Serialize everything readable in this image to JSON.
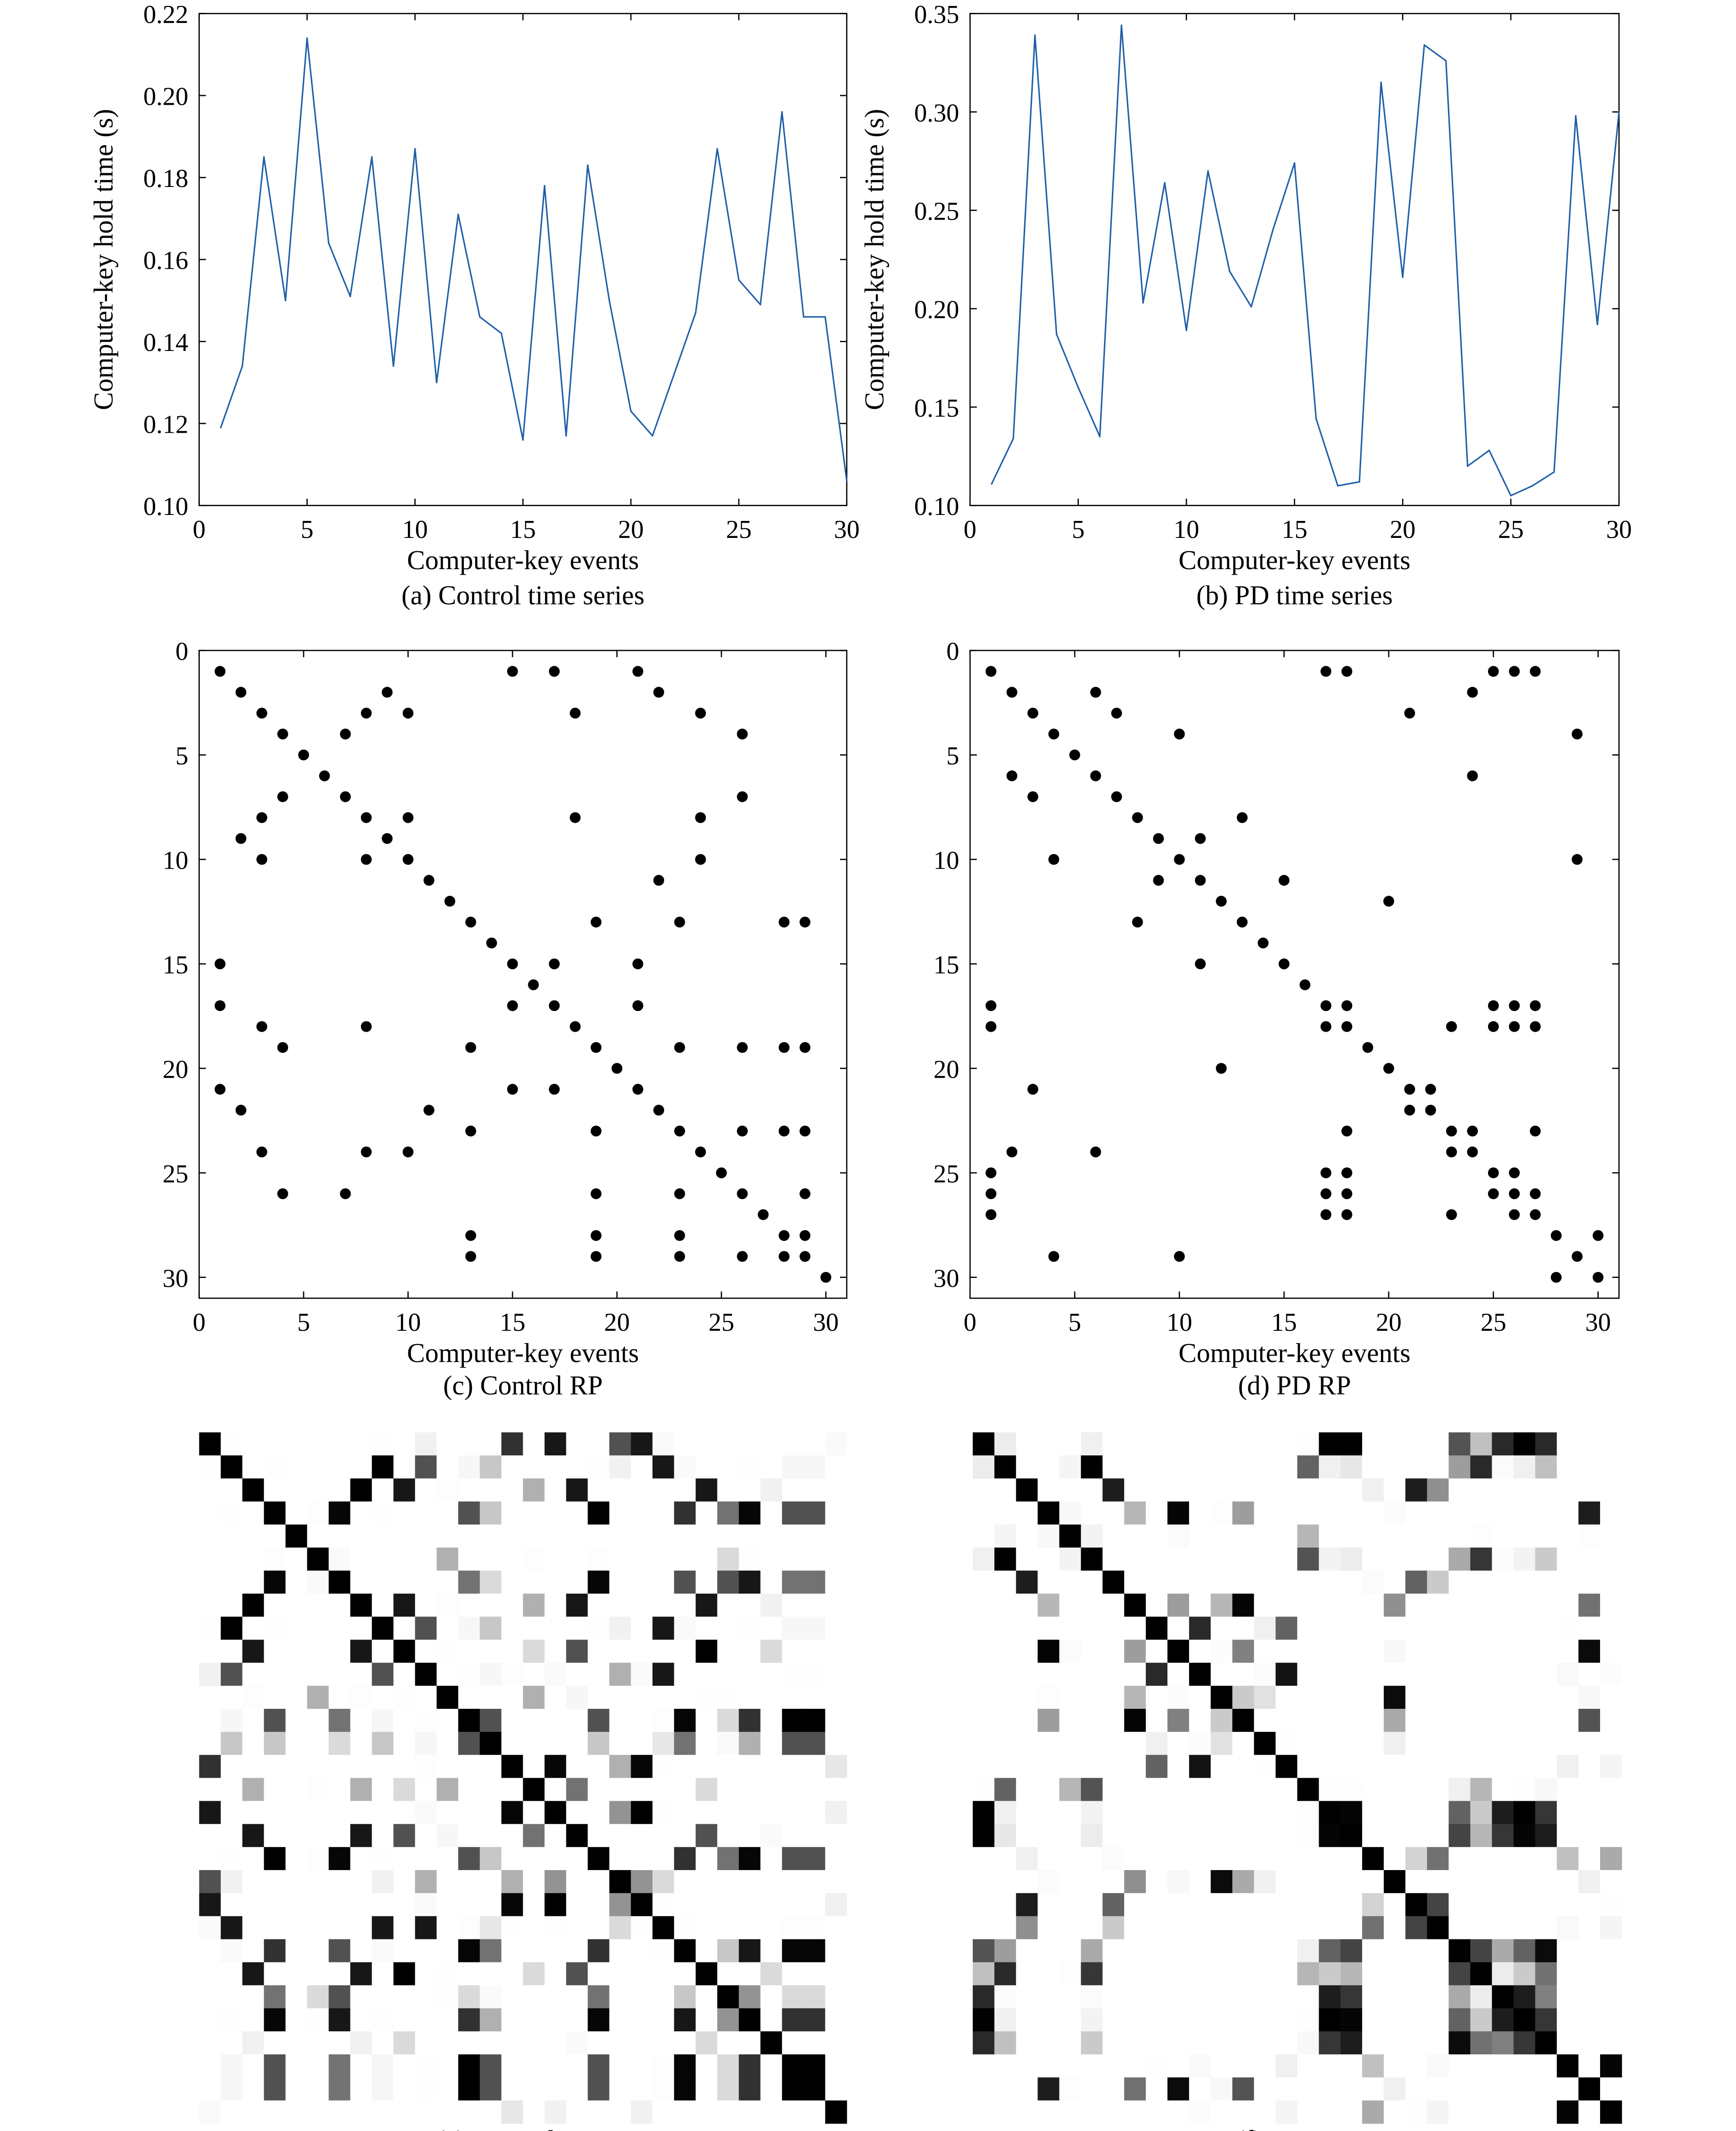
{
  "panels": [
    {
      "id": "a",
      "caption": "(a) Control time series"
    },
    {
      "id": "b",
      "caption": "(b) PD time series"
    },
    {
      "id": "c",
      "caption": "(c) Control RP"
    },
    {
      "id": "d",
      "caption": "(d) PD RP"
    },
    {
      "id": "e",
      "caption": "(e) Control FRP"
    },
    {
      "id": "f",
      "caption": "(f) PD FRP"
    }
  ],
  "chart_data": [
    {
      "panel": "a",
      "type": "line",
      "xlabel": "Computer-key events",
      "ylabel": "Computer-key hold time (s)",
      "xlim": [
        0,
        30
      ],
      "ylim": [
        0.1,
        0.22
      ],
      "xticks": [
        0,
        5,
        10,
        15,
        20,
        25,
        30
      ],
      "yticks": [
        0.1,
        0.12,
        0.14,
        0.16,
        0.18,
        0.2,
        0.22
      ],
      "ytick_labels": [
        "0.10",
        "0.12",
        "0.14",
        "0.16",
        "0.18",
        "0.20",
        "0.22"
      ],
      "line_color": "#1f5fa8",
      "x": [
        1,
        2,
        3,
        4,
        5,
        6,
        7,
        8,
        9,
        10,
        11,
        12,
        13,
        14,
        15,
        16,
        17,
        18,
        19,
        20,
        21,
        22,
        23,
        24,
        25,
        26,
        27,
        28,
        29,
        30
      ],
      "y": [
        0.119,
        0.134,
        0.185,
        0.15,
        0.214,
        0.164,
        0.151,
        0.185,
        0.134,
        0.187,
        0.13,
        0.171,
        0.146,
        0.142,
        0.116,
        0.178,
        0.117,
        0.183,
        0.15,
        0.123,
        0.117,
        0.132,
        0.147,
        0.187,
        0.155,
        0.149,
        0.196,
        0.146,
        0.146,
        0.106
      ]
    },
    {
      "panel": "b",
      "type": "line",
      "xlabel": "Computer-key events",
      "ylabel": "Computer-key hold time (s)",
      "xlim": [
        0,
        30
      ],
      "ylim": [
        0.1,
        0.35
      ],
      "xticks": [
        0,
        5,
        10,
        15,
        20,
        25,
        30
      ],
      "yticks": [
        0.1,
        0.15,
        0.2,
        0.25,
        0.3,
        0.35
      ],
      "ytick_labels": [
        "0.10",
        "0.15",
        "0.20",
        "0.25",
        "0.30",
        "0.35"
      ],
      "line_color": "#1f5fa8",
      "x": [
        1,
        2,
        3,
        4,
        5,
        6,
        7,
        8,
        9,
        10,
        11,
        12,
        13,
        14,
        15,
        16,
        17,
        18,
        19,
        20,
        21,
        22,
        23,
        24,
        25,
        26,
        27,
        28,
        29,
        30
      ],
      "y": [
        0.111,
        0.134,
        0.339,
        0.187,
        0.16,
        0.135,
        0.344,
        0.203,
        0.264,
        0.189,
        0.27,
        0.219,
        0.201,
        0.24,
        0.274,
        0.144,
        0.11,
        0.112,
        0.315,
        0.216,
        0.334,
        0.326,
        0.12,
        0.128,
        0.105,
        0.11,
        0.117,
        0.298,
        0.192,
        0.3
      ]
    },
    {
      "panel": "c",
      "type": "scatter",
      "xlabel": "Computer-key events",
      "ylabel": "",
      "xlim": [
        0,
        31
      ],
      "ylim": [
        0,
        31
      ],
      "y_reversed": true,
      "xticks": [
        0,
        5,
        10,
        15,
        20,
        25,
        30
      ],
      "yticks": [
        0,
        5,
        10,
        15,
        20,
        25,
        30
      ],
      "points": [
        [
          1,
          1
        ],
        [
          15,
          1
        ],
        [
          17,
          1
        ],
        [
          21,
          1
        ],
        [
          2,
          2
        ],
        [
          9,
          2
        ],
        [
          22,
          2
        ],
        [
          3,
          3
        ],
        [
          8,
          3
        ],
        [
          10,
          3
        ],
        [
          18,
          3
        ],
        [
          24,
          3
        ],
        [
          4,
          4
        ],
        [
          7,
          4
        ],
        [
          26,
          4
        ],
        [
          5,
          5
        ],
        [
          6,
          6
        ],
        [
          4,
          7
        ],
        [
          7,
          7
        ],
        [
          26,
          7
        ],
        [
          3,
          8
        ],
        [
          8,
          8
        ],
        [
          10,
          8
        ],
        [
          18,
          8
        ],
        [
          24,
          8
        ],
        [
          2,
          9
        ],
        [
          9,
          9
        ],
        [
          3,
          10
        ],
        [
          8,
          10
        ],
        [
          10,
          10
        ],
        [
          24,
          10
        ],
        [
          11,
          11
        ],
        [
          22,
          11
        ],
        [
          12,
          12
        ],
        [
          13,
          13
        ],
        [
          19,
          13
        ],
        [
          23,
          13
        ],
        [
          28,
          13
        ],
        [
          29,
          13
        ],
        [
          14,
          14
        ],
        [
          1,
          15
        ],
        [
          15,
          15
        ],
        [
          17,
          15
        ],
        [
          21,
          15
        ],
        [
          16,
          16
        ],
        [
          1,
          17
        ],
        [
          15,
          17
        ],
        [
          17,
          17
        ],
        [
          21,
          17
        ],
        [
          3,
          18
        ],
        [
          8,
          18
        ],
        [
          18,
          18
        ],
        [
          4,
          19
        ],
        [
          13,
          19
        ],
        [
          19,
          19
        ],
        [
          23,
          19
        ],
        [
          26,
          19
        ],
        [
          28,
          19
        ],
        [
          29,
          19
        ],
        [
          20,
          20
        ],
        [
          1,
          21
        ],
        [
          15,
          21
        ],
        [
          17,
          21
        ],
        [
          21,
          21
        ],
        [
          2,
          22
        ],
        [
          11,
          22
        ],
        [
          22,
          22
        ],
        [
          13,
          23
        ],
        [
          19,
          23
        ],
        [
          23,
          23
        ],
        [
          26,
          23
        ],
        [
          28,
          23
        ],
        [
          29,
          23
        ],
        [
          3,
          24
        ],
        [
          8,
          24
        ],
        [
          10,
          24
        ],
        [
          24,
          24
        ],
        [
          25,
          25
        ],
        [
          4,
          26
        ],
        [
          7,
          26
        ],
        [
          19,
          26
        ],
        [
          23,
          26
        ],
        [
          26,
          26
        ],
        [
          29,
          26
        ],
        [
          27,
          27
        ],
        [
          13,
          28
        ],
        [
          19,
          28
        ],
        [
          23,
          28
        ],
        [
          28,
          28
        ],
        [
          29,
          28
        ],
        [
          13,
          29
        ],
        [
          19,
          29
        ],
        [
          23,
          29
        ],
        [
          26,
          29
        ],
        [
          28,
          29
        ],
        [
          29,
          29
        ],
        [
          30,
          30
        ]
      ]
    },
    {
      "panel": "d",
      "type": "scatter",
      "xlabel": "Computer-key events",
      "ylabel": "",
      "xlim": [
        0,
        31
      ],
      "ylim": [
        0,
        31
      ],
      "y_reversed": true,
      "xticks": [
        0,
        5,
        10,
        15,
        20,
        25,
        30
      ],
      "yticks": [
        0,
        5,
        10,
        15,
        20,
        25,
        30
      ],
      "points": [
        [
          1,
          1
        ],
        [
          17,
          1
        ],
        [
          18,
          1
        ],
        [
          25,
          1
        ],
        [
          26,
          1
        ],
        [
          27,
          1
        ],
        [
          2,
          2
        ],
        [
          6,
          2
        ],
        [
          24,
          2
        ],
        [
          3,
          3
        ],
        [
          7,
          3
        ],
        [
          21,
          3
        ],
        [
          4,
          4
        ],
        [
          10,
          4
        ],
        [
          29,
          4
        ],
        [
          5,
          5
        ],
        [
          2,
          6
        ],
        [
          6,
          6
        ],
        [
          24,
          6
        ],
        [
          3,
          7
        ],
        [
          7,
          7
        ],
        [
          8,
          8
        ],
        [
          13,
          8
        ],
        [
          9,
          9
        ],
        [
          11,
          9
        ],
        [
          4,
          10
        ],
        [
          10,
          10
        ],
        [
          29,
          10
        ],
        [
          9,
          11
        ],
        [
          11,
          11
        ],
        [
          15,
          11
        ],
        [
          12,
          12
        ],
        [
          20,
          12
        ],
        [
          8,
          13
        ],
        [
          13,
          13
        ],
        [
          14,
          14
        ],
        [
          11,
          15
        ],
        [
          15,
          15
        ],
        [
          16,
          16
        ],
        [
          1,
          17
        ],
        [
          17,
          17
        ],
        [
          18,
          17
        ],
        [
          25,
          17
        ],
        [
          26,
          17
        ],
        [
          27,
          17
        ],
        [
          1,
          18
        ],
        [
          17,
          18
        ],
        [
          18,
          18
        ],
        [
          23,
          18
        ],
        [
          25,
          18
        ],
        [
          26,
          18
        ],
        [
          27,
          18
        ],
        [
          19,
          19
        ],
        [
          12,
          20
        ],
        [
          20,
          20
        ],
        [
          3,
          21
        ],
        [
          21,
          21
        ],
        [
          22,
          21
        ],
        [
          21,
          22
        ],
        [
          22,
          22
        ],
        [
          18,
          23
        ],
        [
          23,
          23
        ],
        [
          24,
          23
        ],
        [
          27,
          23
        ],
        [
          2,
          24
        ],
        [
          6,
          24
        ],
        [
          23,
          24
        ],
        [
          24,
          24
        ],
        [
          1,
          25
        ],
        [
          17,
          25
        ],
        [
          18,
          25
        ],
        [
          25,
          25
        ],
        [
          26,
          25
        ],
        [
          1,
          26
        ],
        [
          17,
          26
        ],
        [
          18,
          26
        ],
        [
          25,
          26
        ],
        [
          26,
          26
        ],
        [
          27,
          26
        ],
        [
          1,
          27
        ],
        [
          17,
          27
        ],
        [
          18,
          27
        ],
        [
          23,
          27
        ],
        [
          26,
          27
        ],
        [
          27,
          27
        ],
        [
          28,
          28
        ],
        [
          30,
          28
        ],
        [
          4,
          29
        ],
        [
          10,
          29
        ],
        [
          29,
          29
        ],
        [
          28,
          30
        ],
        [
          30,
          30
        ]
      ]
    },
    {
      "panel": "e",
      "type": "heatmap",
      "size": 30,
      "derived_from": "a",
      "colormap": "gray: black = 1 (identical), white = 0"
    },
    {
      "panel": "f",
      "type": "heatmap",
      "size": 30,
      "derived_from": "b",
      "colormap": "gray: black = 1 (identical), white = 0"
    }
  ]
}
